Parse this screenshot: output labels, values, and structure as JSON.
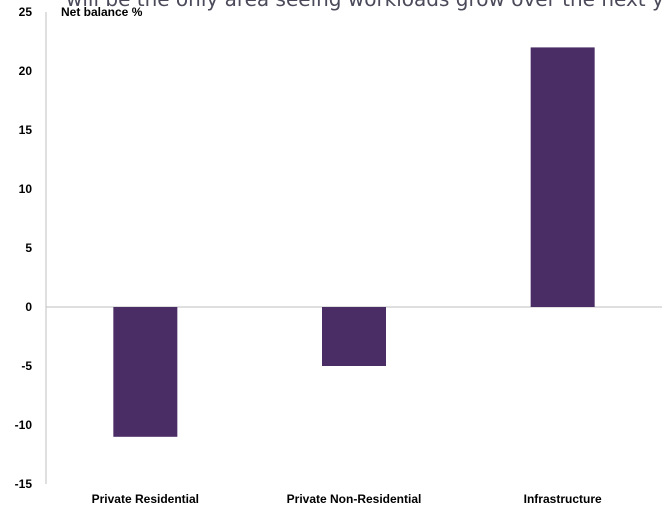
{
  "chart_data": {
    "type": "bar",
    "title": "will be the only area seeing workloads grow over the next year",
    "ylabel": "Net balance %",
    "categories": [
      "Private Residential",
      "Private Non-Residential",
      "Infrastructure"
    ],
    "values": [
      -11,
      -5,
      22
    ],
    "ylim": [
      -15,
      25
    ],
    "yticks": [
      25,
      20,
      15,
      10,
      5,
      0,
      -5,
      -10,
      -15
    ],
    "bar_color": "#4b2d65",
    "axis_color": "#bfbfbf",
    "grid": false,
    "legend": "none"
  }
}
